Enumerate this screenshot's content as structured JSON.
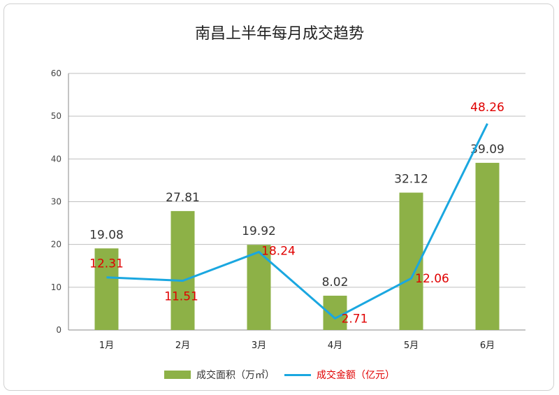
{
  "chart_data": {
    "type": "bar+line",
    "title": "南昌上半年每月成交趋势",
    "categories": [
      "1月",
      "2月",
      "3月",
      "4月",
      "5月",
      "6月"
    ],
    "series": [
      {
        "name": "成交面积（万㎡）",
        "type": "bar",
        "values": [
          19.08,
          27.81,
          19.92,
          8.02,
          32.12,
          39.09
        ],
        "labels": [
          "19.08",
          "27.81",
          "19.92",
          "8.02",
          "32.12",
          "39.09"
        ],
        "color": "#8db147",
        "label_color": "#333333"
      },
      {
        "name": "成交金额（亿元）",
        "type": "line",
        "values": [
          12.31,
          11.51,
          18.24,
          2.71,
          12.06,
          48.26
        ],
        "labels": [
          "12.31",
          "11.51",
          "18.24",
          "2.71",
          "12.06",
          "48.26"
        ],
        "color": "#1aa7e0",
        "label_color": "#e00000"
      }
    ],
    "ylim": [
      0,
      60
    ],
    "yticks": [
      "0",
      "10",
      "20",
      "30",
      "40",
      "50",
      "60"
    ],
    "grid": true,
    "legend_position": "bottom"
  }
}
